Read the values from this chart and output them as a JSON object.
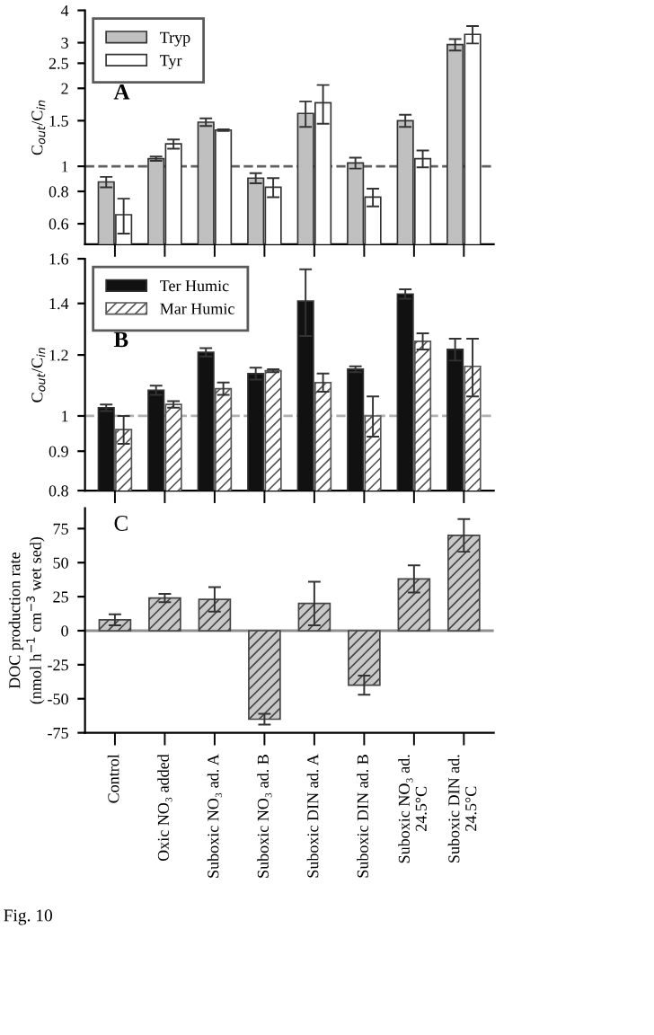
{
  "chart_data": [
    {
      "type": "bar",
      "categories": [
        null,
        null,
        null,
        null,
        null,
        null,
        null,
        null
      ],
      "ylabel": "C$_{out}$/C$_{in}$",
      "log": true,
      "ylim": [
        0.5,
        4
      ],
      "yticks": [
        0.6,
        0.8,
        1,
        1.5,
        2,
        2.5,
        3,
        4
      ],
      "tick_labels": "y",
      "legend": "top left",
      "annotations": [
        "A"
      ],
      "series": [
        {
          "name": "Tryp",
          "color": "#c0c0c0",
          "values": [
            0.87,
            1.07,
            1.48,
            0.9,
            1.6,
            1.03,
            1.5,
            2.95
          ],
          "errors": [
            0.04,
            0.02,
            0.05,
            0.04,
            0.18,
            0.05,
            0.08,
            0.15
          ]
        },
        {
          "name": "Tyr",
          "color": "#ffffff",
          "values": [
            0.65,
            1.22,
            1.38,
            0.83,
            1.76,
            0.76,
            1.07,
            3.23
          ],
          "errors": [
            0.1,
            0.05,
            0.01,
            0.07,
            0.3,
            0.06,
            0.08,
            0.25
          ]
        }
      ],
      "ref_lines": [
        {
          "axis": "y",
          "value": 1,
          "color": "#606060",
          "line_style": "dashed"
        }
      ]
    },
    {
      "type": "bar",
      "categories": [
        null,
        null,
        null,
        null,
        null,
        null,
        null,
        null
      ],
      "ylabel": "C$_{out}$/C$_{in}$",
      "log": true,
      "ylim": [
        0.8,
        1.6
      ],
      "yticks": [
        0.8,
        0.9,
        1,
        1.2,
        1.4,
        1.6
      ],
      "tick_labels": "y",
      "legend": "top left",
      "annotations": [
        "B"
      ],
      "series": [
        {
          "name": "Ter Humic",
          "color": "#111111",
          "values": [
            1.025,
            1.08,
            1.21,
            1.135,
            1.41,
            1.15,
            1.44,
            1.22
          ],
          "errors": [
            0.01,
            0.015,
            0.015,
            0.02,
            0.14,
            0.01,
            0.02,
            0.04
          ]
        },
        {
          "name": "Mar Humic",
          "color": "#555555",
          "values": [
            0.96,
            1.035,
            1.085,
            1.145,
            1.105,
            1.0,
            1.25,
            1.16
          ],
          "errors": [
            0.04,
            0.01,
            0.02,
            0.005,
            0.03,
            0.06,
            0.03,
            0.1
          ]
        }
      ],
      "ref_lines": [
        {
          "axis": "y",
          "value": 1,
          "color": "#b0b0b0",
          "line_style": "dashed"
        }
      ]
    },
    {
      "type": "bar",
      "categories": [
        "Control",
        "Oxic NO₃ added",
        "Suboxic NO₃ ad. A",
        "Suboxic NO₃ ad. B",
        "Suboxic DIN ad. A",
        "Suboxic DIN ad. B",
        "Suboxic NO₃ ad.\n24.5°C",
        "Suboxic DIN ad.\n24.5°C"
      ],
      "ylabel": "DOC production rate\n(nmol h$^{−1}$ cm$^{−3}$ wet sed)",
      "ylim": [
        -75,
        90
      ],
      "yticks": [
        -75,
        -50,
        -25,
        0,
        25,
        50,
        75
      ],
      "annotations": [
        "C",
        "Fig. 10"
      ],
      "series": [
        {
          "color": "#444444",
          "values": [
            8,
            24,
            23,
            -65,
            20,
            -40,
            38,
            70
          ],
          "errors": [
            4,
            3,
            9,
            4,
            16,
            7,
            10,
            12
          ]
        }
      ],
      "ref_lines": [
        {
          "axis": "y",
          "value": 0,
          "color": "#909090",
          "line_style": "solid"
        }
      ]
    }
  ]
}
